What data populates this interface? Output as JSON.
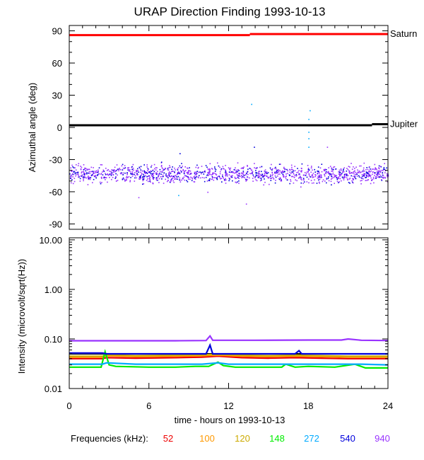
{
  "chart_data": [
    {
      "type": "scatter",
      "title": "URAP Direction Finding  1993-10-13",
      "ylabel": "Azimuthal angle (deg)",
      "xlim": [
        0,
        24
      ],
      "ylim": [
        -95,
        95
      ],
      "y_ticks": [
        90,
        60,
        30,
        0,
        -30,
        -60,
        -90
      ],
      "grid": false,
      "reference_lines": [
        {
          "name": "Saturn",
          "color": "#ff0000",
          "segments": [
            {
              "x": [
                0,
                13.6
              ],
              "y": 86
            },
            {
              "x": [
                13.6,
                24
              ],
              "y": 87
            }
          ]
        },
        {
          "name": "Jupiter",
          "color": "#000000",
          "segments": [
            {
              "x": [
                0,
                22.8
              ],
              "y": 2
            },
            {
              "x": [
                22.8,
                24
              ],
              "y": 3
            }
          ]
        }
      ],
      "scatter_band": {
        "x": [
          0,
          24
        ],
        "center_y": -43,
        "spread_y": [
          -55,
          -31
        ],
        "colors": [
          "#9933ff",
          "#0000dd"
        ]
      },
      "outlier_points": [
        {
          "x": 13.7,
          "y": 22,
          "color": "#00aaff"
        },
        {
          "x": 18.1,
          "y": 16,
          "color": "#00aaff"
        },
        {
          "x": 18.0,
          "y": 8,
          "color": "#00aaff"
        },
        {
          "x": 18.0,
          "y": 2,
          "color": "#00aaff"
        },
        {
          "x": 18.0,
          "y": -4,
          "color": "#00aaff"
        },
        {
          "x": 18.0,
          "y": -10,
          "color": "#00aaff"
        },
        {
          "x": 18.0,
          "y": -18,
          "color": "#00aaff"
        },
        {
          "x": 13.9,
          "y": -18,
          "color": "#0000dd"
        },
        {
          "x": 19.4,
          "y": -18,
          "color": "#9933ff"
        },
        {
          "x": 8.3,
          "y": -24,
          "color": "#0000dd"
        },
        {
          "x": 13.3,
          "y": -71,
          "color": "#9933ff"
        },
        {
          "x": 5.2,
          "y": -65,
          "color": "#9933ff"
        },
        {
          "x": 8.2,
          "y": -63,
          "color": "#00aaff"
        },
        {
          "x": 10.4,
          "y": -60,
          "color": "#9933ff"
        },
        {
          "x": 17.4,
          "y": -55,
          "color": "#9933ff"
        }
      ]
    },
    {
      "type": "line",
      "ylabel": "Intensity (microvolt/sqrt(Hz))",
      "xlabel": "time - hours on 1993-10-13",
      "xlim": [
        0,
        24
      ],
      "ylim": [
        0.01,
        11
      ],
      "y_scale": "log",
      "x_ticks": [
        0,
        6,
        12,
        18,
        24
      ],
      "y_ticks": [
        10.0,
        1.0,
        0.1,
        0.01
      ],
      "y_tick_labels": [
        "10.00",
        "1.00",
        "0.10",
        "0.01"
      ],
      "black_reference_line": 0.05,
      "series": [
        {
          "name": "52",
          "color": "#ee0000",
          "x": [
            0,
            2.5,
            2.8,
            5,
            8,
            10,
            11.2,
            13,
            15,
            17,
            19,
            21,
            24
          ],
          "y": [
            0.04,
            0.04,
            0.042,
            0.041,
            0.042,
            0.043,
            0.045,
            0.042,
            0.041,
            0.042,
            0.041,
            0.04,
            0.04
          ]
        },
        {
          "name": "100",
          "color": "#ff9900",
          "x": [
            0,
            2.5,
            2.8,
            5,
            8,
            10,
            11.2,
            13,
            15,
            17,
            19,
            21,
            24
          ],
          "y": [
            0.043,
            0.043,
            0.046,
            0.044,
            0.045,
            0.046,
            0.047,
            0.045,
            0.044,
            0.045,
            0.044,
            0.043,
            0.043
          ]
        },
        {
          "name": "120",
          "color": "#ccaa00",
          "x": [
            0,
            2.5,
            2.8,
            5,
            8,
            10,
            11.2,
            13,
            15,
            17,
            19,
            21,
            24
          ],
          "y": [
            0.045,
            0.045,
            0.048,
            0.046,
            0.047,
            0.048,
            0.049,
            0.047,
            0.046,
            0.047,
            0.046,
            0.045,
            0.045
          ]
        },
        {
          "name": "148",
          "color": "#00ee00",
          "x": [
            0,
            2.4,
            2.7,
            3.0,
            3.5,
            6,
            8,
            9.5,
            10.5,
            11.2,
            11.6,
            12.5,
            14,
            16,
            16.3,
            17,
            18,
            20,
            21.5,
            22.3,
            23,
            24
          ],
          "y": [
            0.027,
            0.027,
            0.055,
            0.03,
            0.028,
            0.027,
            0.027,
            0.028,
            0.028,
            0.034,
            0.029,
            0.027,
            0.027,
            0.027,
            0.031,
            0.027,
            0.028,
            0.027,
            0.031,
            0.026,
            0.026,
            0.026
          ]
        },
        {
          "name": "272",
          "color": "#00aaff",
          "x": [
            0,
            2.5,
            2.8,
            5,
            8,
            10,
            11.2,
            12,
            14,
            16,
            18,
            20,
            22,
            24
          ],
          "y": [
            0.031,
            0.031,
            0.033,
            0.031,
            0.031,
            0.031,
            0.033,
            0.031,
            0.031,
            0.031,
            0.031,
            0.031,
            0.031,
            0.03
          ]
        },
        {
          "name": "540",
          "color": "#0000dd",
          "x": [
            0,
            2.5,
            2.8,
            5,
            8,
            10.3,
            10.6,
            10.8,
            12,
            17,
            17.3,
            17.5,
            19,
            22,
            24
          ],
          "y": [
            0.052,
            0.052,
            0.05,
            0.05,
            0.05,
            0.05,
            0.075,
            0.05,
            0.05,
            0.05,
            0.058,
            0.05,
            0.05,
            0.05,
            0.05
          ]
        },
        {
          "name": "940",
          "color": "#9933ff",
          "x": [
            0,
            5,
            8,
            10.3,
            10.6,
            10.8,
            14,
            18,
            20.5,
            21,
            22,
            24
          ],
          "y": [
            0.092,
            0.092,
            0.092,
            0.093,
            0.115,
            0.094,
            0.094,
            0.095,
            0.095,
            0.1,
            0.094,
            0.093
          ]
        }
      ],
      "legend": {
        "label": "Frequencies (kHz):",
        "placement": "bottom"
      }
    }
  ]
}
